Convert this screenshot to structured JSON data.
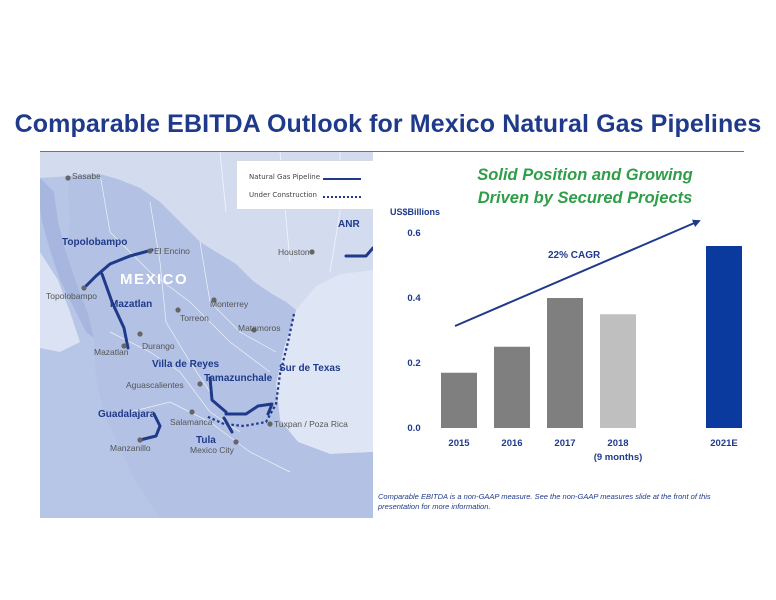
{
  "slide": {
    "title": "Comparable EBITDA Outlook for Mexico Natural Gas Pipelines",
    "headline_line1": "Solid Position and Growing",
    "headline_line2": "Driven by Secured Projects",
    "footnote_line1": "Comparable EBITDA is a non-GAAP measure.  See the non-GAAP measures slide at the front of this",
    "footnote_line2": "presentation for more information."
  },
  "map": {
    "country_label": "MEXICO",
    "legend": {
      "natural_gas_pipeline": "Natural Gas Pipeline",
      "under_construction": "Under Construction"
    },
    "cities": [
      "Sasabe",
      "El Encino",
      "Topolobampo",
      "Torreon",
      "Monterrey",
      "Matamoros",
      "Houston",
      "Durango",
      "Mazatlan",
      "Aguascalientes",
      "Salamanca",
      "Manzanillo",
      "Mexico City",
      "Tuxpan / Poza Rica"
    ],
    "pipelines": [
      "Topolobampo",
      "Mazatlan",
      "Villa de Reyes",
      "Tamazunchale",
      "Sur de Texas",
      "Guadalajara",
      "Tula",
      "ANR"
    ],
    "colors": {
      "land": "#b7c5e6",
      "land_other": "#d3dbee",
      "pipeline": "#1f3a8a"
    }
  },
  "chart_data": {
    "type": "bar",
    "ylabel": "US$Billions",
    "ylim": [
      0,
      0.6
    ],
    "yticks": [
      "0.0",
      "0.2",
      "0.4",
      "0.6"
    ],
    "categories": [
      "2015",
      "2016",
      "2017",
      "2018",
      "2021E"
    ],
    "category_sublabels": [
      "",
      "",
      "",
      "(9 months)",
      ""
    ],
    "values": [
      0.17,
      0.25,
      0.4,
      0.35,
      0.56
    ],
    "bar_colors": [
      "#7f7f7f",
      "#7f7f7f",
      "#7f7f7f",
      "#bfbfbf",
      "#0a3a9e"
    ],
    "annotation": "22% CAGR",
    "grid": false,
    "legend": "none"
  }
}
